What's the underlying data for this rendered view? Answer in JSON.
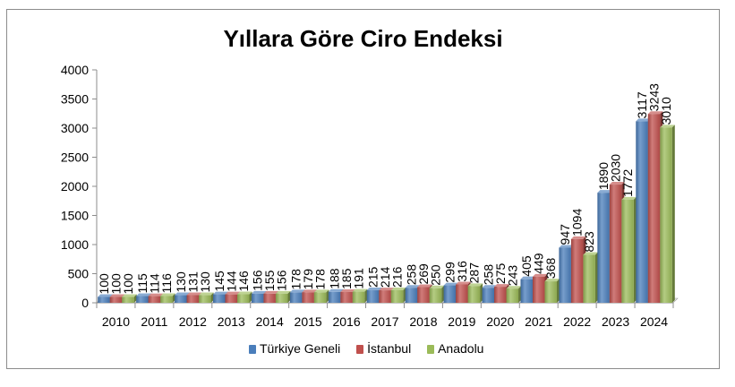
{
  "chart_data": {
    "type": "bar",
    "title": "Yıllara Göre Ciro Endeksi",
    "xlabel": "",
    "ylabel": "",
    "categories": [
      "2010",
      "2011",
      "2012",
      "2013",
      "2014",
      "2015",
      "2016",
      "2017",
      "2018",
      "2019",
      "2020",
      "2021",
      "2022",
      "2023",
      "2024"
    ],
    "ylim": [
      0,
      4000
    ],
    "yticks": [
      0,
      500,
      1000,
      1500,
      2000,
      2500,
      3000,
      3500,
      4000
    ],
    "grid": false,
    "legend": "bottom",
    "series": [
      {
        "name": "Türkiye Geneli",
        "color": "#4a7ebb",
        "values": [
          100,
          115,
          130,
          145,
          156,
          178,
          188,
          215,
          258,
          299,
          258,
          405,
          947,
          1890,
          3117
        ]
      },
      {
        "name": "İstanbul",
        "color": "#c0504d",
        "values": [
          100,
          114,
          131,
          144,
          155,
          179,
          185,
          214,
          269,
          316,
          275,
          449,
          1094,
          2030,
          3243
        ]
      },
      {
        "name": "Anadolu",
        "color": "#9bbb59",
        "values": [
          100,
          116,
          130,
          146,
          156,
          178,
          191,
          216,
          250,
          287,
          243,
          368,
          823,
          1772,
          3010
        ]
      }
    ]
  }
}
